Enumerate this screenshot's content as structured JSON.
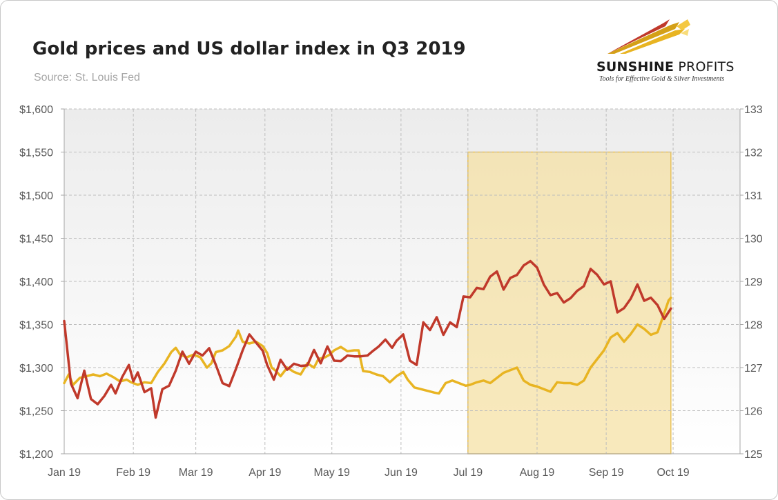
{
  "header": {
    "title": "Gold prices and US dollar index in Q3 2019",
    "subtitle": "Source: St. Louis Fed"
  },
  "logo": {
    "name_bold": "SUNSHINE",
    "name_regular": " PROFITS",
    "tagline": "Tools for Effective Gold & Silver Investments"
  },
  "chart_data": {
    "type": "line",
    "x_labels": [
      "Jan 19",
      "Feb 19",
      "Mar 19",
      "Apr 19",
      "May 19",
      "Jun 19",
      "Jul 19",
      "Aug 19",
      "Sep 19",
      "Oct 19"
    ],
    "x_range": [
      "2019-01-01",
      "2019-10-31"
    ],
    "y_left": {
      "ylim": [
        1200,
        1600
      ],
      "ticks": [
        "$1,200",
        "$1,250",
        "$1,300",
        "$1,350",
        "$1,400",
        "$1,450",
        "$1,500",
        "$1,550",
        "$1,600"
      ]
    },
    "y_right": {
      "ylim": [
        125,
        133
      ],
      "ticks": [
        "125",
        "126",
        "127",
        "128",
        "129",
        "130",
        "131",
        "132",
        "133"
      ]
    },
    "highlight": {
      "x_start": "2019-07-01",
      "x_end": "2019-09-30",
      "y_top": 1550,
      "color": "#f5dfa0"
    },
    "background_gradient": [
      "#ececec",
      "#ffffff"
    ],
    "grid": true,
    "series": [
      {
        "axis": "left",
        "color": "#e8b422",
        "points": [
          [
            "2019-01-01",
            1282
          ],
          [
            "2019-01-03",
            1292
          ],
          [
            "2019-01-05",
            1280
          ],
          [
            "2019-01-08",
            1288
          ],
          [
            "2019-01-11",
            1290
          ],
          [
            "2019-01-14",
            1292
          ],
          [
            "2019-01-17",
            1290
          ],
          [
            "2019-01-20",
            1293
          ],
          [
            "2019-01-23",
            1289
          ],
          [
            "2019-01-26",
            1284
          ],
          [
            "2019-01-29",
            1286
          ],
          [
            "2019-01-31",
            1283
          ],
          [
            "2019-02-03",
            1280
          ],
          [
            "2019-02-06",
            1283
          ],
          [
            "2019-02-09",
            1282
          ],
          [
            "2019-02-12",
            1295
          ],
          [
            "2019-02-15",
            1305
          ],
          [
            "2019-02-18",
            1318
          ],
          [
            "2019-02-20",
            1323
          ],
          [
            "2019-02-22",
            1315
          ],
          [
            "2019-02-25",
            1312
          ],
          [
            "2019-02-28",
            1315
          ],
          [
            "2019-03-03",
            1312
          ],
          [
            "2019-03-06",
            1300
          ],
          [
            "2019-03-08",
            1305
          ],
          [
            "2019-03-10",
            1318
          ],
          [
            "2019-03-13",
            1320
          ],
          [
            "2019-03-16",
            1325
          ],
          [
            "2019-03-19",
            1336
          ],
          [
            "2019-03-20",
            1343
          ],
          [
            "2019-03-22",
            1330
          ],
          [
            "2019-03-25",
            1328
          ],
          [
            "2019-03-28",
            1330
          ],
          [
            "2019-03-31",
            1325
          ],
          [
            "2019-04-02",
            1317
          ],
          [
            "2019-04-04",
            1300
          ],
          [
            "2019-04-06",
            1296
          ],
          [
            "2019-04-08",
            1290
          ],
          [
            "2019-04-11",
            1300
          ],
          [
            "2019-04-14",
            1295
          ],
          [
            "2019-04-17",
            1292
          ],
          [
            "2019-04-20",
            1305
          ],
          [
            "2019-04-23",
            1300
          ],
          [
            "2019-04-25",
            1310
          ],
          [
            "2019-04-28",
            1312
          ],
          [
            "2019-04-30",
            1315
          ],
          [
            "2019-05-02",
            1320
          ],
          [
            "2019-05-05",
            1324
          ],
          [
            "2019-05-08",
            1319
          ],
          [
            "2019-05-11",
            1320
          ],
          [
            "2019-05-13",
            1320
          ],
          [
            "2019-05-15",
            1296
          ],
          [
            "2019-05-18",
            1295
          ],
          [
            "2019-05-21",
            1292
          ],
          [
            "2019-05-24",
            1290
          ],
          [
            "2019-05-27",
            1283
          ],
          [
            "2019-05-30",
            1290
          ],
          [
            "2019-06-02",
            1295
          ],
          [
            "2019-06-04",
            1286
          ],
          [
            "2019-06-07",
            1277
          ],
          [
            "2019-06-10",
            1275
          ],
          [
            "2019-06-13",
            1273
          ],
          [
            "2019-06-16",
            1271
          ],
          [
            "2019-06-18",
            1270
          ],
          [
            "2019-06-21",
            1282
          ],
          [
            "2019-06-24",
            1285
          ],
          [
            "2019-06-27",
            1282
          ],
          [
            "2019-06-30",
            1279
          ],
          [
            "2019-07-02",
            1280
          ],
          [
            "2019-07-05",
            1283
          ],
          [
            "2019-07-08",
            1285
          ],
          [
            "2019-07-11",
            1282
          ],
          [
            "2019-07-14",
            1288
          ],
          [
            "2019-07-17",
            1294
          ],
          [
            "2019-07-20",
            1297
          ],
          [
            "2019-07-23",
            1300
          ],
          [
            "2019-07-26",
            1285
          ],
          [
            "2019-07-29",
            1280
          ],
          [
            "2019-08-01",
            1278
          ],
          [
            "2019-08-04",
            1275
          ],
          [
            "2019-08-07",
            1272
          ],
          [
            "2019-08-10",
            1283
          ],
          [
            "2019-08-13",
            1282
          ],
          [
            "2019-08-16",
            1282
          ],
          [
            "2019-08-19",
            1280
          ],
          [
            "2019-08-22",
            1285
          ],
          [
            "2019-08-25",
            1300
          ],
          [
            "2019-08-28",
            1310
          ],
          [
            "2019-08-31",
            1320
          ],
          [
            "2019-09-03",
            1335
          ],
          [
            "2019-09-06",
            1340
          ],
          [
            "2019-09-09",
            1330
          ],
          [
            "2019-09-12",
            1339
          ],
          [
            "2019-09-15",
            1350
          ],
          [
            "2019-09-18",
            1345
          ],
          [
            "2019-09-21",
            1338
          ],
          [
            "2019-09-24",
            1341
          ],
          [
            "2019-09-27",
            1363
          ],
          [
            "2019-09-29",
            1378
          ],
          [
            "2019-09-30",
            1381
          ]
        ]
      },
      {
        "axis": "right",
        "color": "#c0392b",
        "points": [
          [
            "2019-01-01",
            128.08
          ],
          [
            "2019-01-04",
            126.63
          ],
          [
            "2019-01-07",
            126.29
          ],
          [
            "2019-01-10",
            126.93
          ],
          [
            "2019-01-13",
            126.27
          ],
          [
            "2019-01-16",
            126.15
          ],
          [
            "2019-01-19",
            126.34
          ],
          [
            "2019-01-22",
            126.6
          ],
          [
            "2019-01-24",
            126.4
          ],
          [
            "2019-01-27",
            126.78
          ],
          [
            "2019-01-30",
            127.06
          ],
          [
            "2019-02-01",
            126.68
          ],
          [
            "2019-02-03",
            126.89
          ],
          [
            "2019-02-06",
            126.43
          ],
          [
            "2019-02-09",
            126.52
          ],
          [
            "2019-02-11",
            125.84
          ],
          [
            "2019-02-14",
            126.5
          ],
          [
            "2019-02-17",
            126.58
          ],
          [
            "2019-02-20",
            126.93
          ],
          [
            "2019-02-23",
            127.37
          ],
          [
            "2019-02-26",
            127.09
          ],
          [
            "2019-03-01",
            127.37
          ],
          [
            "2019-03-04",
            127.28
          ],
          [
            "2019-03-07",
            127.45
          ],
          [
            "2019-03-10",
            127.06
          ],
          [
            "2019-03-13",
            126.64
          ],
          [
            "2019-03-16",
            126.57
          ],
          [
            "2019-03-19",
            126.97
          ],
          [
            "2019-03-22",
            127.4
          ],
          [
            "2019-03-25",
            127.77
          ],
          [
            "2019-03-28",
            127.58
          ],
          [
            "2019-03-31",
            127.39
          ],
          [
            "2019-04-02",
            127.06
          ],
          [
            "2019-04-05",
            126.72
          ],
          [
            "2019-04-08",
            127.18
          ],
          [
            "2019-04-11",
            126.95
          ],
          [
            "2019-04-14",
            127.09
          ],
          [
            "2019-04-17",
            127.04
          ],
          [
            "2019-04-20",
            127.05
          ],
          [
            "2019-04-23",
            127.41
          ],
          [
            "2019-04-26",
            127.1
          ],
          [
            "2019-04-29",
            127.49
          ],
          [
            "2019-05-02",
            127.16
          ],
          [
            "2019-05-05",
            127.15
          ],
          [
            "2019-05-08",
            127.28
          ],
          [
            "2019-05-11",
            127.26
          ],
          [
            "2019-05-14",
            127.26
          ],
          [
            "2019-05-17",
            127.28
          ],
          [
            "2019-05-19",
            127.37
          ],
          [
            "2019-05-22",
            127.49
          ],
          [
            "2019-05-25",
            127.65
          ],
          [
            "2019-05-28",
            127.46
          ],
          [
            "2019-05-30",
            127.62
          ],
          [
            "2019-06-02",
            127.77
          ],
          [
            "2019-06-05",
            127.16
          ],
          [
            "2019-06-08",
            127.06
          ],
          [
            "2019-06-11",
            128.05
          ],
          [
            "2019-06-14",
            127.87
          ],
          [
            "2019-06-17",
            128.17
          ],
          [
            "2019-06-20",
            127.76
          ],
          [
            "2019-06-23",
            128.05
          ],
          [
            "2019-06-26",
            127.94
          ],
          [
            "2019-06-29",
            128.65
          ],
          [
            "2019-07-02",
            128.63
          ],
          [
            "2019-07-05",
            128.85
          ],
          [
            "2019-07-08",
            128.82
          ],
          [
            "2019-07-11",
            129.11
          ],
          [
            "2019-07-14",
            129.23
          ],
          [
            "2019-07-17",
            128.81
          ],
          [
            "2019-07-20",
            129.08
          ],
          [
            "2019-07-23",
            129.15
          ],
          [
            "2019-07-26",
            129.37
          ],
          [
            "2019-07-29",
            129.47
          ],
          [
            "2019-08-01",
            129.32
          ],
          [
            "2019-08-04",
            128.93
          ],
          [
            "2019-08-07",
            128.68
          ],
          [
            "2019-08-10",
            128.73
          ],
          [
            "2019-08-13",
            128.51
          ],
          [
            "2019-08-16",
            128.61
          ],
          [
            "2019-08-19",
            128.78
          ],
          [
            "2019-08-22",
            128.89
          ],
          [
            "2019-08-25",
            129.29
          ],
          [
            "2019-08-28",
            129.15
          ],
          [
            "2019-08-31",
            128.93
          ],
          [
            "2019-09-03",
            129.0
          ],
          [
            "2019-09-06",
            128.28
          ],
          [
            "2019-09-09",
            128.38
          ],
          [
            "2019-09-12",
            128.6
          ],
          [
            "2019-09-15",
            128.93
          ],
          [
            "2019-09-18",
            128.55
          ],
          [
            "2019-09-21",
            128.62
          ],
          [
            "2019-09-24",
            128.45
          ],
          [
            "2019-09-27",
            128.13
          ],
          [
            "2019-09-30",
            128.37
          ]
        ]
      }
    ]
  }
}
